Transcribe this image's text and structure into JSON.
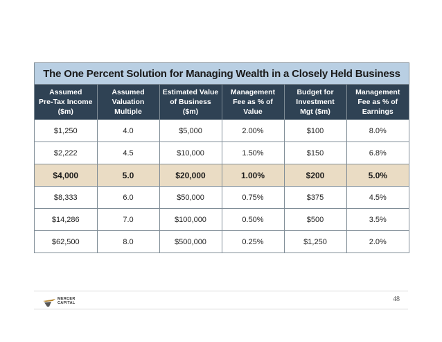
{
  "title": "The One Percent Solution for Managing Wealth in a Closely Held Business",
  "columns": [
    [
      "Assumed",
      "Pre-Tax Income",
      "($m)"
    ],
    [
      "Assumed",
      "Valuation",
      "Multiple"
    ],
    [
      "Estimated Value",
      "of Business",
      "($m)"
    ],
    [
      "Management",
      "Fee as % of",
      "Value"
    ],
    [
      "Budget for",
      "Investment",
      "Mgt ($m)"
    ],
    [
      "Management",
      "Fee as % of",
      "Earnings"
    ]
  ],
  "rows": [
    [
      "$1,250",
      "4.0",
      "$5,000",
      "2.00%",
      "$100",
      "8.0%"
    ],
    [
      "$2,222",
      "4.5",
      "$10,000",
      "1.50%",
      "$150",
      "6.8%"
    ],
    [
      "$4,000",
      "5.0",
      "$20,000",
      "1.00%",
      "$200",
      "5.0%"
    ],
    [
      "$8,333",
      "6.0",
      "$50,000",
      "0.75%",
      "$375",
      "4.5%"
    ],
    [
      "$14,286",
      "7.0",
      "$100,000",
      "0.50%",
      "$500",
      "3.5%"
    ],
    [
      "$62,500",
      "8.0",
      "$500,000",
      "0.25%",
      "$1,250",
      "2.0%"
    ]
  ],
  "highlight_row": 2,
  "logo": {
    "line1": "MERCER",
    "line2": "CAPITAL"
  },
  "page_number": "48",
  "colors": {
    "title_band": "#b9cfe3",
    "header_band": "#2f4254",
    "highlight_row": "#eadcc4",
    "logo_accent": "#b8862e"
  }
}
